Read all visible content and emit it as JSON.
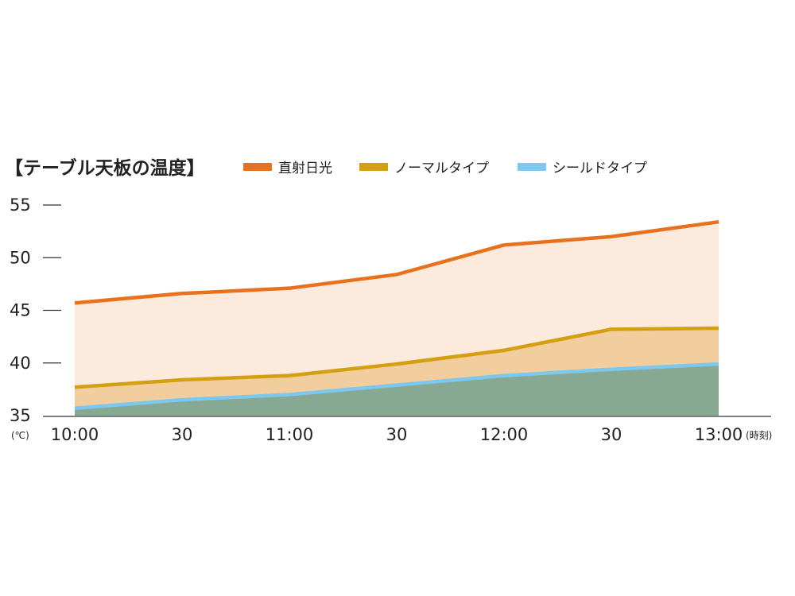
{
  "chart_data": {
    "type": "area",
    "title": "【テーブル天板の温度】",
    "y_unit": "(℃)",
    "x_unit": "(時刻)",
    "categories": [
      "10:00",
      "30",
      "11:00",
      "30",
      "12:00",
      "30",
      "13:00"
    ],
    "ylim": [
      35,
      55
    ],
    "yticks": [
      35,
      40,
      45,
      50,
      55
    ],
    "grid": false,
    "legend_position": "top",
    "series": [
      {
        "name": "直射日光",
        "color": "#E8711E",
        "fill": "#FCEBDD",
        "values": [
          45.7,
          46.6,
          47.1,
          48.4,
          51.2,
          52.0,
          53.4
        ]
      },
      {
        "name": "ノーマルタイプ",
        "color": "#D4A012",
        "fill": "#F2CE9E",
        "values": [
          37.7,
          38.4,
          38.8,
          39.9,
          41.2,
          43.2,
          43.3
        ]
      },
      {
        "name": "シールドタイプ",
        "color": "#7CC8EE",
        "fill": "#87A892",
        "values": [
          35.7,
          36.5,
          37.0,
          37.9,
          38.8,
          39.4,
          39.9
        ]
      }
    ]
  }
}
